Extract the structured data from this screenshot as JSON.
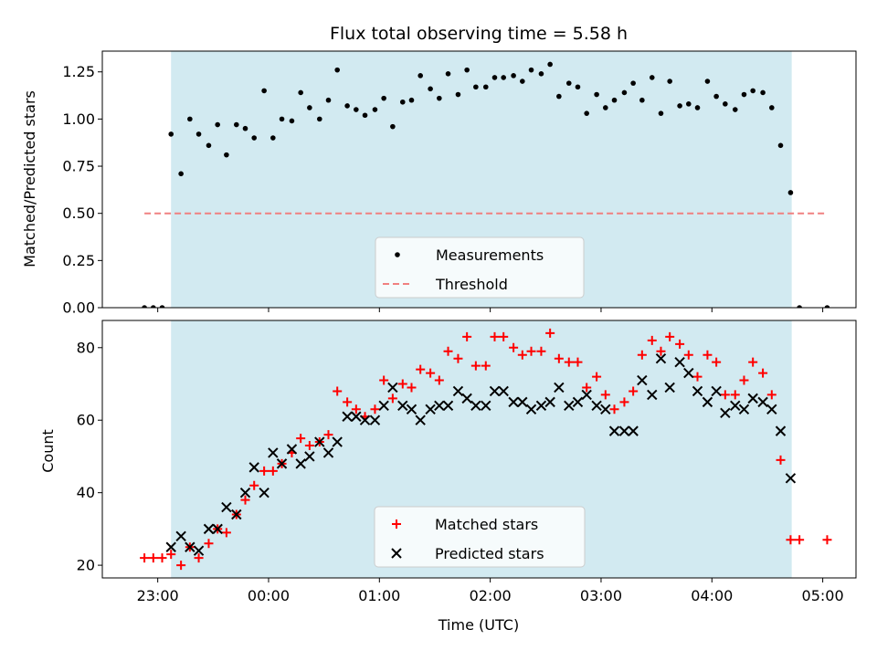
{
  "chart_data": [
    {
      "type": "scatter",
      "title": "Flux total observing time = 5.58 h",
      "xlabel": "",
      "ylabel": "Matched/Predicted stars",
      "xlim_hours": [
        22.5,
        29.3
      ],
      "ylim": [
        0,
        1.36
      ],
      "yticks": [
        0.0,
        0.25,
        0.5,
        0.75,
        1.0,
        1.25
      ],
      "ytick_labels": [
        "0.00",
        "0.25",
        "0.50",
        "0.75",
        "1.00",
        "1.25"
      ],
      "shaded_region_hours": [
        23.12,
        28.72
      ],
      "shade_color": "#add8e6",
      "series": [
        {
          "name": "Measurements",
          "marker": "dot",
          "color": "#000000",
          "points": [
            [
              22.88,
              0.0
            ],
            [
              22.96,
              0.0
            ],
            [
              23.04,
              0.0
            ],
            [
              23.12,
              0.92
            ],
            [
              23.21,
              0.71
            ],
            [
              23.29,
              1.0
            ],
            [
              23.37,
              0.92
            ],
            [
              23.46,
              0.86
            ],
            [
              23.54,
              0.97
            ],
            [
              23.62,
              0.81
            ],
            [
              23.71,
              0.97
            ],
            [
              23.79,
              0.95
            ],
            [
              23.87,
              0.9
            ],
            [
              23.96,
              1.15
            ],
            [
              24.04,
              0.9
            ],
            [
              24.12,
              1.0
            ],
            [
              24.21,
              0.99
            ],
            [
              24.29,
              1.14
            ],
            [
              24.37,
              1.06
            ],
            [
              24.46,
              1.0
            ],
            [
              24.54,
              1.1
            ],
            [
              24.62,
              1.26
            ],
            [
              24.71,
              1.07
            ],
            [
              24.79,
              1.05
            ],
            [
              24.87,
              1.02
            ],
            [
              24.96,
              1.05
            ],
            [
              25.04,
              1.11
            ],
            [
              25.12,
              0.96
            ],
            [
              25.21,
              1.09
            ],
            [
              25.29,
              1.1
            ],
            [
              25.37,
              1.23
            ],
            [
              25.46,
              1.16
            ],
            [
              25.54,
              1.11
            ],
            [
              25.62,
              1.24
            ],
            [
              25.71,
              1.13
            ],
            [
              25.79,
              1.26
            ],
            [
              25.87,
              1.17
            ],
            [
              25.96,
              1.17
            ],
            [
              26.04,
              1.22
            ],
            [
              26.12,
              1.22
            ],
            [
              26.21,
              1.23
            ],
            [
              26.29,
              1.2
            ],
            [
              26.37,
              1.26
            ],
            [
              26.46,
              1.24
            ],
            [
              26.54,
              1.29
            ],
            [
              26.62,
              1.12
            ],
            [
              26.71,
              1.19
            ],
            [
              26.79,
              1.17
            ],
            [
              26.87,
              1.03
            ],
            [
              26.96,
              1.13
            ],
            [
              27.04,
              1.06
            ],
            [
              27.12,
              1.1
            ],
            [
              27.21,
              1.14
            ],
            [
              27.29,
              1.19
            ],
            [
              27.37,
              1.1
            ],
            [
              27.46,
              1.22
            ],
            [
              27.54,
              1.03
            ],
            [
              27.62,
              1.2
            ],
            [
              27.71,
              1.07
            ],
            [
              27.79,
              1.08
            ],
            [
              27.87,
              1.06
            ],
            [
              27.96,
              1.2
            ],
            [
              28.04,
              1.12
            ],
            [
              28.12,
              1.08
            ],
            [
              28.21,
              1.05
            ],
            [
              28.29,
              1.13
            ],
            [
              28.37,
              1.15
            ],
            [
              28.46,
              1.14
            ],
            [
              28.54,
              1.06
            ],
            [
              28.62,
              0.86
            ],
            [
              28.71,
              0.61
            ],
            [
              28.79,
              0.0
            ],
            [
              29.04,
              0.0
            ]
          ]
        },
        {
          "name": "Threshold",
          "marker": "dashed-line",
          "color": "#f08080",
          "x_range_hours": [
            22.88,
            29.04
          ],
          "y": 0.5
        }
      ],
      "legend_placement": "lower-center"
    },
    {
      "type": "scatter",
      "title": "",
      "xlabel": "Time (UTC)",
      "ylabel": "Count",
      "xlim_hours": [
        22.5,
        29.3
      ],
      "ylim": [
        16.5,
        87.5
      ],
      "yticks": [
        20,
        40,
        60,
        80
      ],
      "ytick_labels": [
        "20",
        "40",
        "60",
        "80"
      ],
      "xticks_hours": [
        23,
        24,
        25,
        26,
        27,
        28,
        29
      ],
      "xtick_labels": [
        "23:00",
        "00:00",
        "01:00",
        "02:00",
        "03:00",
        "04:00",
        "05:00"
      ],
      "shaded_region_hours": [
        23.12,
        28.72
      ],
      "shade_color": "#add8e6",
      "series": [
        {
          "name": "Matched stars",
          "marker": "plus",
          "color": "#ff0000",
          "points": [
            [
              22.88,
              22
            ],
            [
              22.96,
              22
            ],
            [
              23.04,
              22
            ],
            [
              23.12,
              23
            ],
            [
              23.21,
              20
            ],
            [
              23.29,
              25
            ],
            [
              23.37,
              22
            ],
            [
              23.46,
              26
            ],
            [
              23.54,
              30
            ],
            [
              23.62,
              29
            ],
            [
              23.71,
              34
            ],
            [
              23.79,
              38
            ],
            [
              23.87,
              42
            ],
            [
              23.96,
              46
            ],
            [
              24.04,
              46
            ],
            [
              24.12,
              48
            ],
            [
              24.21,
              51
            ],
            [
              24.29,
              55
            ],
            [
              24.37,
              53
            ],
            [
              24.46,
              54
            ],
            [
              24.54,
              56
            ],
            [
              24.62,
              68
            ],
            [
              24.71,
              65
            ],
            [
              24.79,
              63
            ],
            [
              24.87,
              61
            ],
            [
              24.96,
              63
            ],
            [
              25.04,
              71
            ],
            [
              25.12,
              66
            ],
            [
              25.21,
              70
            ],
            [
              25.29,
              69
            ],
            [
              25.37,
              74
            ],
            [
              25.46,
              73
            ],
            [
              25.54,
              71
            ],
            [
              25.62,
              79
            ],
            [
              25.71,
              77
            ],
            [
              25.79,
              83
            ],
            [
              25.87,
              75
            ],
            [
              25.96,
              75
            ],
            [
              26.04,
              83
            ],
            [
              26.12,
              83
            ],
            [
              26.21,
              80
            ],
            [
              26.29,
              78
            ],
            [
              26.37,
              79
            ],
            [
              26.46,
              79
            ],
            [
              26.54,
              84
            ],
            [
              26.62,
              77
            ],
            [
              26.71,
              76
            ],
            [
              26.79,
              76
            ],
            [
              26.87,
              69
            ],
            [
              26.96,
              72
            ],
            [
              27.04,
              67
            ],
            [
              27.12,
              63
            ],
            [
              27.21,
              65
            ],
            [
              27.29,
              68
            ],
            [
              27.37,
              78
            ],
            [
              27.46,
              82
            ],
            [
              27.54,
              79
            ],
            [
              27.62,
              83
            ],
            [
              27.71,
              81
            ],
            [
              27.79,
              78
            ],
            [
              27.87,
              72
            ],
            [
              27.96,
              78
            ],
            [
              28.04,
              76
            ],
            [
              28.12,
              67
            ],
            [
              28.21,
              67
            ],
            [
              28.29,
              71
            ],
            [
              28.37,
              76
            ],
            [
              28.46,
              73
            ],
            [
              28.54,
              67
            ],
            [
              28.62,
              49
            ],
            [
              28.71,
              27
            ],
            [
              28.79,
              27
            ],
            [
              29.04,
              27
            ]
          ]
        },
        {
          "name": "Predicted stars",
          "marker": "x",
          "color": "#000000",
          "points": [
            [
              23.12,
              25
            ],
            [
              23.21,
              28
            ],
            [
              23.29,
              25
            ],
            [
              23.37,
              24
            ],
            [
              23.46,
              30
            ],
            [
              23.54,
              30
            ],
            [
              23.62,
              36
            ],
            [
              23.71,
              34
            ],
            [
              23.79,
              40
            ],
            [
              23.87,
              47
            ],
            [
              23.96,
              40
            ],
            [
              24.04,
              51
            ],
            [
              24.12,
              48
            ],
            [
              24.21,
              52
            ],
            [
              24.29,
              48
            ],
            [
              24.37,
              50
            ],
            [
              24.46,
              54
            ],
            [
              24.54,
              51
            ],
            [
              24.62,
              54
            ],
            [
              24.71,
              61
            ],
            [
              24.79,
              61
            ],
            [
              24.87,
              60
            ],
            [
              24.96,
              60
            ],
            [
              25.04,
              64
            ],
            [
              25.12,
              69
            ],
            [
              25.21,
              64
            ],
            [
              25.29,
              63
            ],
            [
              25.37,
              60
            ],
            [
              25.46,
              63
            ],
            [
              25.54,
              64
            ],
            [
              25.62,
              64
            ],
            [
              25.71,
              68
            ],
            [
              25.79,
              66
            ],
            [
              25.87,
              64
            ],
            [
              25.96,
              64
            ],
            [
              26.04,
              68
            ],
            [
              26.12,
              68
            ],
            [
              26.21,
              65
            ],
            [
              26.29,
              65
            ],
            [
              26.37,
              63
            ],
            [
              26.46,
              64
            ],
            [
              26.54,
              65
            ],
            [
              26.62,
              69
            ],
            [
              26.71,
              64
            ],
            [
              26.79,
              65
            ],
            [
              26.87,
              67
            ],
            [
              26.96,
              64
            ],
            [
              27.04,
              63
            ],
            [
              27.12,
              57
            ],
            [
              27.21,
              57
            ],
            [
              27.29,
              57
            ],
            [
              27.37,
              71
            ],
            [
              27.46,
              67
            ],
            [
              27.54,
              77
            ],
            [
              27.62,
              69
            ],
            [
              27.71,
              76
            ],
            [
              27.79,
              73
            ],
            [
              27.87,
              68
            ],
            [
              27.96,
              65
            ],
            [
              28.04,
              68
            ],
            [
              28.12,
              62
            ],
            [
              28.21,
              64
            ],
            [
              28.29,
              63
            ],
            [
              28.37,
              66
            ],
            [
              28.46,
              65
            ],
            [
              28.54,
              63
            ],
            [
              28.62,
              57
            ],
            [
              28.71,
              44
            ]
          ]
        }
      ],
      "legend_placement": "lower-center"
    }
  ]
}
